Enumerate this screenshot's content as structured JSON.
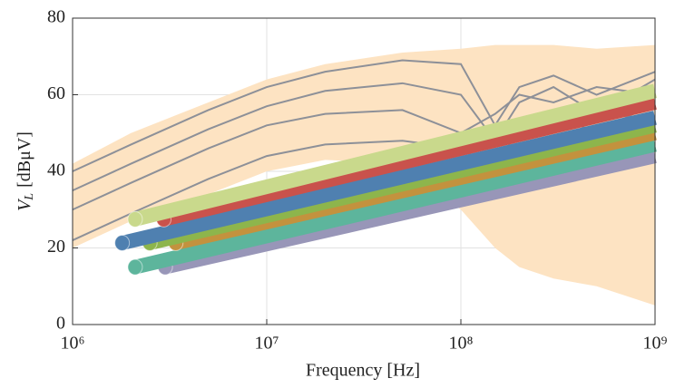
{
  "chart_data": {
    "type": "line",
    "xlabel": "Frequency [Hz]",
    "ylabel": {
      "symbol": "V",
      "subscript": "L",
      "unit": "[dBμV]"
    },
    "xscale": "log",
    "xlim": [
      1000000,
      1000000000
    ],
    "xticks": [
      {
        "value": 1000000,
        "label": "10⁶"
      },
      {
        "value": 10000000,
        "label": "10⁷"
      },
      {
        "value": 100000000,
        "label": "10⁸"
      },
      {
        "value": 1000000000,
        "label": "10⁹"
      }
    ],
    "ylim": [
      0,
      80
    ],
    "yticks": [
      0,
      20,
      40,
      60,
      80
    ],
    "grid": true,
    "x": [
      1000000,
      2000000,
      5000000,
      10000000,
      20000000,
      50000000,
      100000000,
      150000000,
      200000000,
      300000000,
      500000000,
      1000000000
    ],
    "band": {
      "color": "#fde3c2",
      "upper": [
        42,
        50,
        58,
        64,
        68,
        71,
        72,
        73,
        73,
        73,
        72,
        73
      ],
      "lower": [
        20,
        27,
        34,
        40,
        43,
        42,
        30,
        20,
        15,
        12,
        10,
        5
      ]
    },
    "series": [
      {
        "color": "#8d9098",
        "values": [
          40,
          47,
          56,
          62,
          66,
          69,
          68,
          52,
          62,
          65,
          60,
          66
        ]
      },
      {
        "color": "#8d9098",
        "values": [
          35,
          42,
          51,
          57,
          61,
          63,
          60,
          48,
          58,
          62,
          55,
          64
        ]
      },
      {
        "color": "#8d9098",
        "values": [
          30,
          37,
          46,
          52,
          55,
          56,
          50,
          55,
          60,
          58,
          62,
          60
        ]
      },
      {
        "color": "#8d9098",
        "values": [
          22,
          29,
          38,
          44,
          47,
          48,
          46,
          40,
          52,
          55,
          50,
          58
        ]
      }
    ],
    "cables": [
      {
        "color": "#c9d98c",
        "x": [
          2100000,
          1000000000
        ],
        "values": [
          27.5,
          61
        ]
      },
      {
        "color": "#c9524c",
        "x": [
          2950000,
          1000000000
        ],
        "values": [
          27.5,
          58
        ]
      },
      {
        "color": "#4f80b0",
        "x": [
          1800000,
          1000000000
        ],
        "values": [
          21.3,
          54
        ]
      },
      {
        "color": "#8db54c",
        "x": [
          2500000,
          1000000000
        ],
        "values": [
          21.3,
          52
        ]
      },
      {
        "color": "#c3923e",
        "x": [
          3400000,
          1000000000
        ],
        "values": [
          21.3,
          50
        ]
      },
      {
        "color": "#5db59c",
        "x": [
          2100000,
          1000000000
        ],
        "values": [
          15,
          47
        ]
      },
      {
        "color": "#9896b8",
        "x": [
          3000000,
          1000000000
        ],
        "values": [
          15,
          44
        ]
      }
    ]
  }
}
